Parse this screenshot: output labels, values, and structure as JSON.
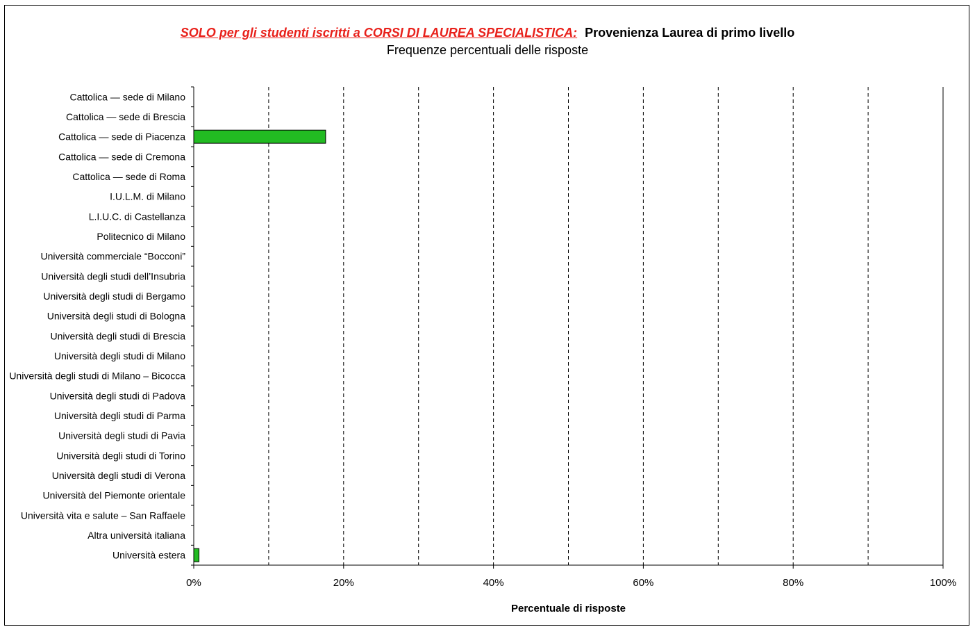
{
  "header": {
    "highlight": "SOLO per gli studenti iscritti a CORSI DI LAUREA SPECIALISTICA:",
    "title": "Provenienza Laurea di primo livello",
    "subtitle": "Frequenze percentuali delle risposte"
  },
  "colors": {
    "bar": "#22bb22",
    "highlight": "#e8201a"
  },
  "chart_data": {
    "type": "bar",
    "orientation": "horizontal",
    "title": "Provenienza Laurea di primo livello",
    "subtitle": "Frequenze percentuali delle risposte",
    "xlabel": "Percentuale di risposte",
    "ylabel": "",
    "xlim": [
      0,
      100
    ],
    "x_ticks": [
      "0%",
      "20%",
      "40%",
      "60%",
      "80%",
      "100%"
    ],
    "grid": "vertical dashed every 10%",
    "categories": [
      "Cattolica — sede di Milano",
      "Cattolica — sede di Brescia",
      "Cattolica — sede di Piacenza",
      "Cattolica — sede di Cremona",
      "Cattolica — sede di Roma",
      "I.U.L.M. di Milano",
      "L.I.U.C. di Castellanza",
      "Politecnico di Milano",
      "Università commerciale “Bocconi”",
      "Università degli studi dell’Insubria",
      "Università degli studi di Bergamo",
      "Università degli studi di Bologna",
      "Università degli studi di Brescia",
      "Università degli studi di Milano",
      "Università degli studi di Milano – Bicocca",
      "Università degli studi di Padova",
      "Università degli studi di Parma",
      "Università degli studi di Pavia",
      "Università degli studi di Torino",
      "Università degli studi di Verona",
      "Università del Piemonte orientale",
      "Università vita e salute – San Raffaele",
      "Altra università italiana",
      "Università estera"
    ],
    "values": [
      0,
      0,
      17.6,
      0,
      0,
      0,
      0,
      0,
      0,
      0,
      0,
      0,
      0,
      0,
      0,
      0,
      0,
      0,
      0,
      0,
      0,
      0,
      0,
      0.7
    ]
  }
}
